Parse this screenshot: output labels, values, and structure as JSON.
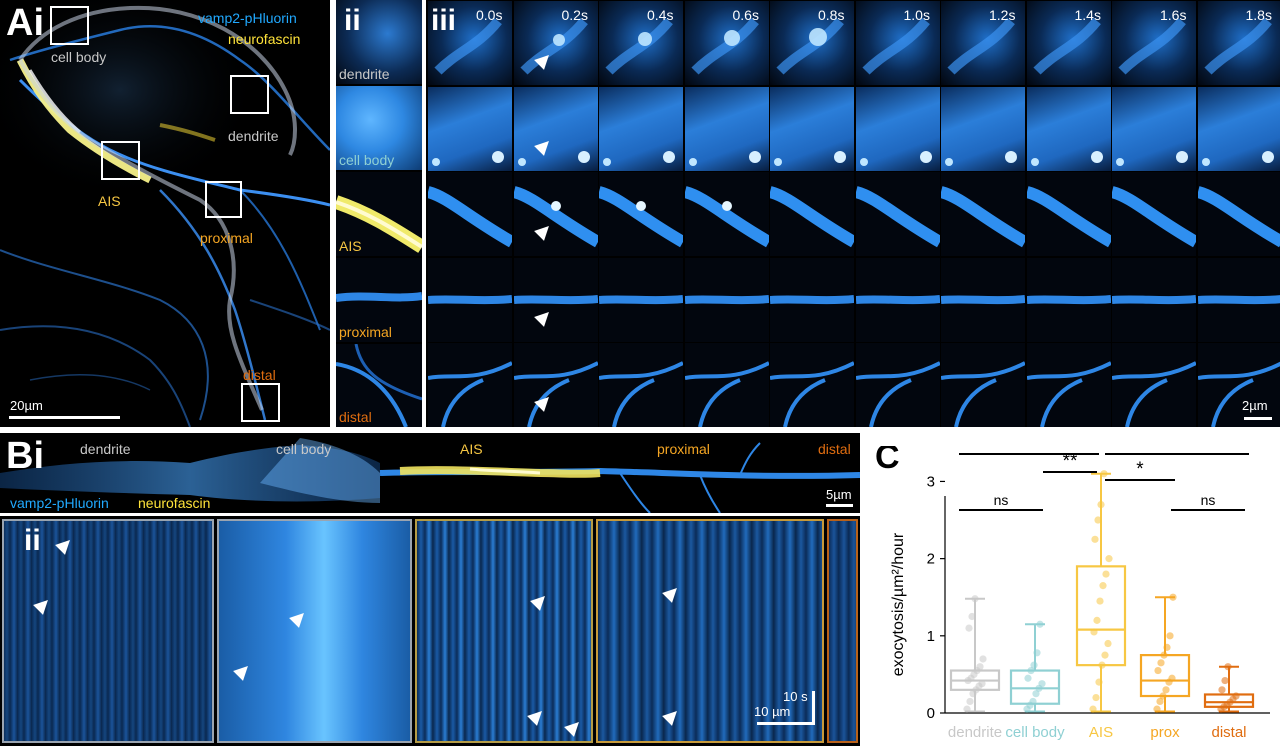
{
  "panel_ai": {
    "letter": "Ai",
    "channel1": "vamp2-pHluorin",
    "channel2": "neurofascin",
    "regions": [
      "cell body",
      "dendrite",
      "AIS",
      "proximal",
      "distal"
    ],
    "scalebar": "20µm"
  },
  "panel_ii": {
    "numeral": "ii",
    "row_labels": [
      "dendrite",
      "cell body",
      "AIS",
      "proximal",
      "distal"
    ]
  },
  "panel_iii": {
    "numeral": "iii",
    "times": [
      "0.0s",
      "0.2s",
      "0.4s",
      "0.6s",
      "0.8s",
      "1.0s",
      "1.2s",
      "1.4s",
      "1.6s",
      "1.8s"
    ],
    "scalebar": "2µm"
  },
  "panel_bi": {
    "letter": "Bi",
    "regions": [
      "dendrite",
      "cell body",
      "AIS",
      "proximal",
      "distal"
    ],
    "channel1": "vamp2-pHluorin",
    "channel2": "neurofascin",
    "scalebar": "5µm"
  },
  "panel_bii": {
    "numeral": "ii",
    "scale_time": "10 s",
    "scale_space": "10 µm"
  },
  "colors": {
    "dendrite": "#c8c8c8",
    "cell_body": "#8fd0d3",
    "AIS": "#f7c743",
    "proximal": "#f5a623",
    "distal": "#e06d10",
    "pHluorin": "#21a9ff",
    "neurofascin": "#ffe33a"
  },
  "chart_data": {
    "type": "box",
    "panel_letter": "C",
    "ylabel": "exocytosis/µm²/hour",
    "ylim": [
      0,
      3.2
    ],
    "yticks": [
      "0",
      "1",
      "2",
      "3"
    ],
    "categories": [
      "dendrite",
      "cell body",
      "AIS",
      "prox",
      "distal"
    ],
    "boxes": [
      {
        "min": 0.02,
        "q1": 0.3,
        "median": 0.42,
        "q3": 0.55,
        "max": 1.48
      },
      {
        "min": 0.02,
        "q1": 0.12,
        "median": 0.32,
        "q3": 0.55,
        "max": 1.15
      },
      {
        "min": 0.02,
        "q1": 0.62,
        "median": 1.08,
        "q3": 1.9,
        "max": 3.1
      },
      {
        "min": 0.02,
        "q1": 0.22,
        "median": 0.42,
        "q3": 0.75,
        "max": 1.5
      },
      {
        "min": 0.02,
        "q1": 0.08,
        "median": 0.14,
        "q3": 0.24,
        "max": 0.6
      }
    ],
    "points": [
      [
        0.05,
        0.15,
        0.25,
        0.3,
        0.35,
        0.38,
        0.42,
        0.45,
        0.5,
        0.55,
        0.6,
        0.7,
        1.1,
        1.25,
        1.48
      ],
      [
        0.05,
        0.1,
        0.15,
        0.25,
        0.32,
        0.38,
        0.45,
        0.55,
        0.62,
        0.78,
        1.15
      ],
      [
        0.05,
        0.2,
        0.4,
        0.62,
        0.75,
        0.9,
        1.05,
        1.2,
        1.45,
        1.65,
        1.8,
        2.0,
        2.25,
        2.5,
        2.7,
        3.1
      ],
      [
        0.05,
        0.15,
        0.22,
        0.3,
        0.4,
        0.45,
        0.55,
        0.65,
        0.75,
        0.85,
        1.0,
        1.5
      ],
      [
        0.05,
        0.08,
        0.1,
        0.14,
        0.18,
        0.22,
        0.3,
        0.42,
        0.6
      ]
    ],
    "significance": [
      {
        "from": 0,
        "to": 2,
        "label": "*"
      },
      {
        "from": 2,
        "to": 4,
        "label": "***"
      },
      {
        "from": 1,
        "to": 2,
        "label": "**"
      },
      {
        "from": 2,
        "to": 3,
        "label": "*"
      },
      {
        "from": 0,
        "to": 1,
        "label": "ns"
      },
      {
        "from": 3,
        "to": 4,
        "label": "ns"
      }
    ]
  }
}
